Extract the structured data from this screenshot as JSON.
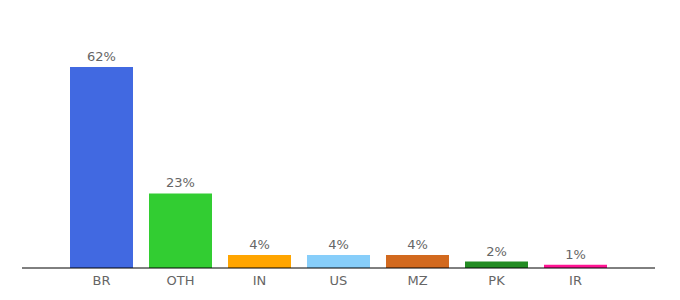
{
  "chart_data": {
    "type": "bar",
    "categories": [
      "BR",
      "OTH",
      "IN",
      "US",
      "MZ",
      "PK",
      "IR"
    ],
    "values": [
      62,
      23,
      4,
      4,
      4,
      2,
      1
    ],
    "value_labels": [
      "62%",
      "23%",
      "4%",
      "4%",
      "4%",
      "2%",
      "1%"
    ],
    "colors": [
      "#4169e1",
      "#32cd32",
      "#ffa500",
      "#87cefa",
      "#d2691e",
      "#228b22",
      "#ff1493"
    ],
    "data_labels": true,
    "tick_labels": "x",
    "grid": false
  }
}
